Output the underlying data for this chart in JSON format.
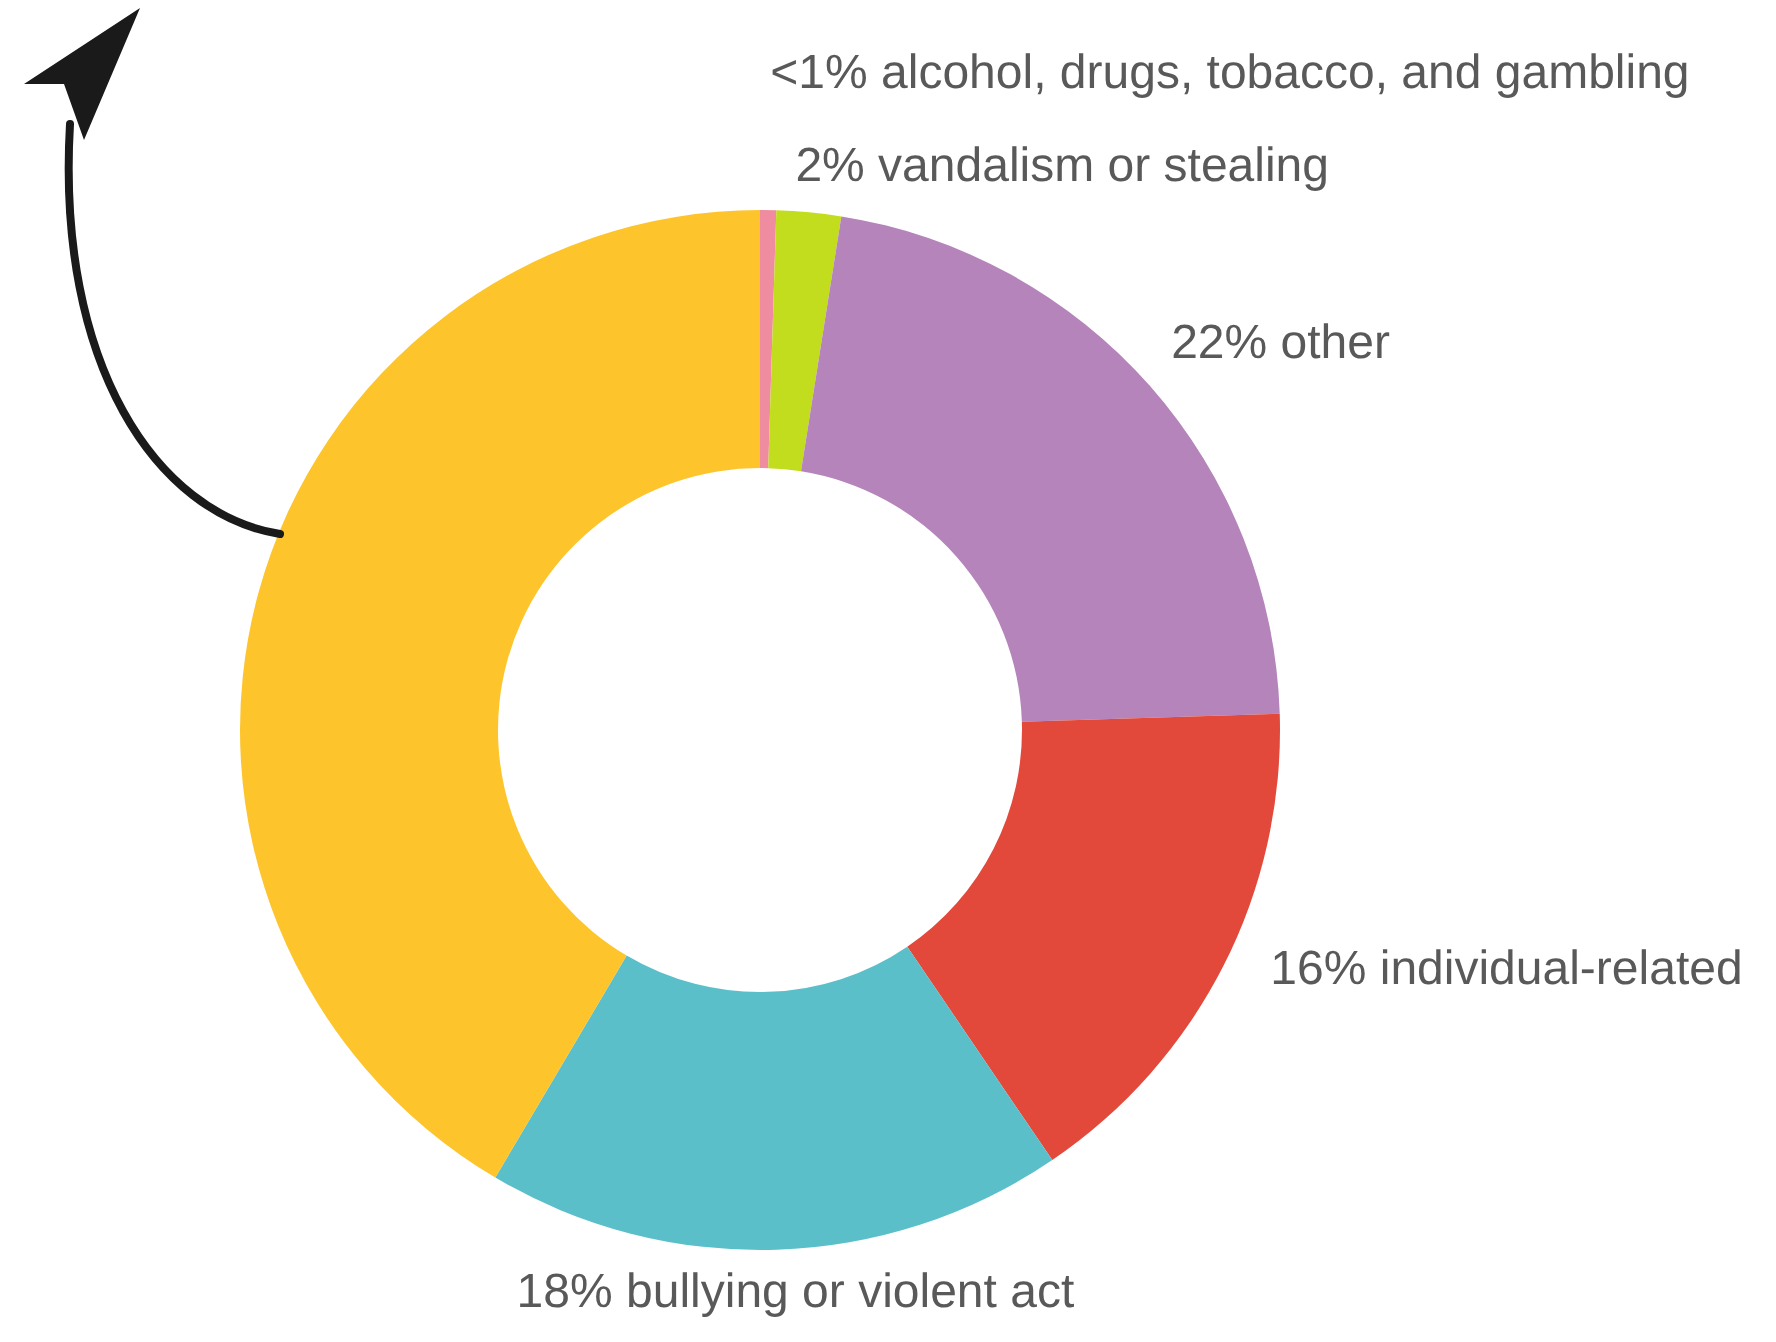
{
  "chart_data": {
    "type": "donut",
    "categories": [
      "alcohol, drugs, tobacco, and gambling",
      "vandalism or stealing",
      "other",
      "individual-related",
      "bullying or violent act",
      null
    ],
    "values": [
      0.5,
      2,
      22,
      16,
      18,
      41.5
    ],
    "value_labels": [
      "<1%",
      "2%",
      "22%",
      "16%",
      "18%",
      null
    ],
    "colors": [
      "#f08ca0",
      "#c2dc1e",
      "#b584bb",
      "#e2493a",
      "#5bbfca",
      "#fdc42c"
    ]
  }
}
